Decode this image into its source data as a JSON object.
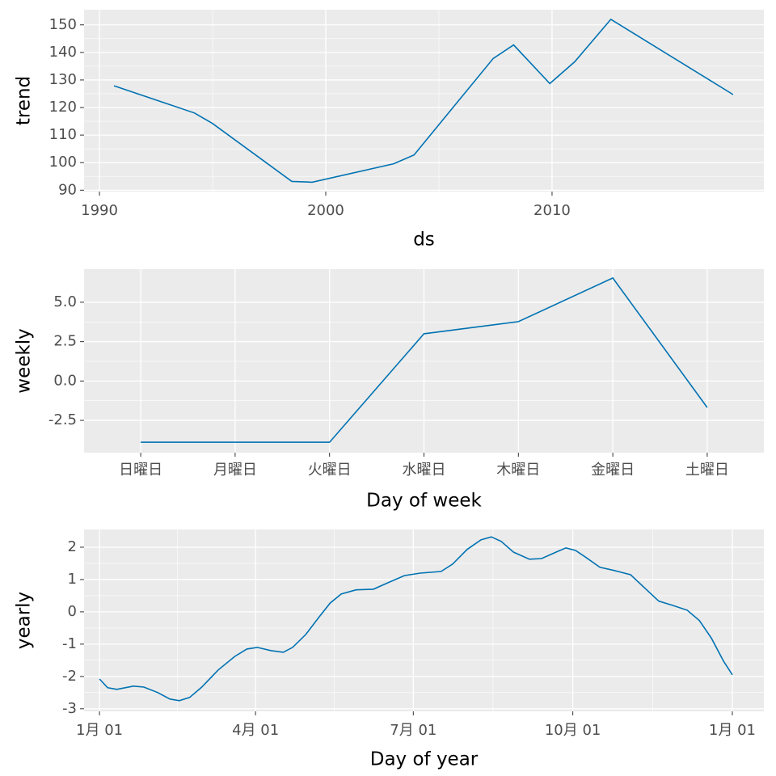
{
  "chart_data": [
    {
      "type": "line",
      "ylabel": "trend",
      "xlabel": "ds",
      "color": "#0072B2",
      "grid": true,
      "x": [
        1990.64,
        1994.2,
        1995,
        1998.5,
        1999.4,
        2003,
        2003.9,
        2007.4,
        2008.3,
        2009.9,
        2011,
        2012.6,
        2018
      ],
      "values": [
        127.9,
        118,
        114.2,
        93.2,
        92.9,
        99.6,
        102.8,
        137.8,
        142.7,
        128.7,
        136.6,
        152,
        124.7
      ],
      "xlim": [
        1989.32,
        2019.36
      ],
      "xticks": [
        1990,
        2000,
        2010
      ],
      "ylim": [
        89.5,
        155.5
      ],
      "yticks": [
        90,
        100,
        110,
        120,
        130,
        140,
        150
      ]
    },
    {
      "type": "line",
      "ylabel": "weekly",
      "xlabel": "Day of week",
      "color": "#0072B2",
      "grid": true,
      "categories": [
        "日曜日",
        "月曜日",
        "火曜日",
        "水曜日",
        "木曜日",
        "金曜日",
        "土曜日"
      ],
      "values": [
        -3.89,
        -3.89,
        -3.89,
        3.0,
        3.77,
        6.54,
        -1.68
      ],
      "ylim": [
        -4.55,
        7.1
      ],
      "yticks": [
        -2.5,
        {
          "value": 0,
          "label": "0.0"
        },
        2.5,
        {
          "value": 5,
          "label": "5.0"
        }
      ]
    },
    {
      "type": "line",
      "ylabel": "yearly",
      "xlabel": "Day of year",
      "color": "#0072B2",
      "grid": true,
      "x": [
        0,
        4.7,
        10,
        19.6,
        25.6,
        33.6,
        40.6,
        46,
        52,
        59,
        68.5,
        78,
        85,
        91,
        99,
        106,
        111.4,
        119,
        126.8,
        133,
        139.4,
        148,
        158,
        166.4,
        175.8,
        185,
        197,
        203.7,
        212,
        220,
        226,
        231.7,
        238.7,
        248,
        255,
        263.4,
        269,
        274.6,
        280.7,
        288.6,
        297,
        306.3,
        315.6,
        322.6,
        330.5,
        339,
        346,
        353,
        360,
        365
      ],
      "values": [
        -2.08,
        -2.35,
        -2.4,
        -2.3,
        -2.33,
        -2.5,
        -2.7,
        -2.75,
        -2.65,
        -2.33,
        -1.8,
        -1.38,
        -1.15,
        -1.1,
        -1.2,
        -1.25,
        -1.1,
        -0.7,
        -0.15,
        0.27,
        0.55,
        0.68,
        0.7,
        0.9,
        1.12,
        1.2,
        1.25,
        1.48,
        1.93,
        2.23,
        2.32,
        2.18,
        1.85,
        1.63,
        1.65,
        1.85,
        1.98,
        1.9,
        1.68,
        1.38,
        1.28,
        1.15,
        0.68,
        0.33,
        0.2,
        0.05,
        -0.27,
        -0.82,
        -1.53,
        -1.95
      ],
      "xlim": [
        -8.9,
        383.2
      ],
      "xticks": [
        {
          "value": 0,
          "label": "1月 01"
        },
        {
          "value": 90,
          "label": "4月 01"
        },
        {
          "value": 181,
          "label": "7月 01"
        },
        {
          "value": 273,
          "label": "10月 01"
        },
        {
          "value": 365,
          "label": "1月 01"
        }
      ],
      "ylim": [
        -3.08,
        2.55
      ],
      "yticks": [
        -3,
        -2,
        -1,
        0,
        1,
        2
      ]
    }
  ]
}
